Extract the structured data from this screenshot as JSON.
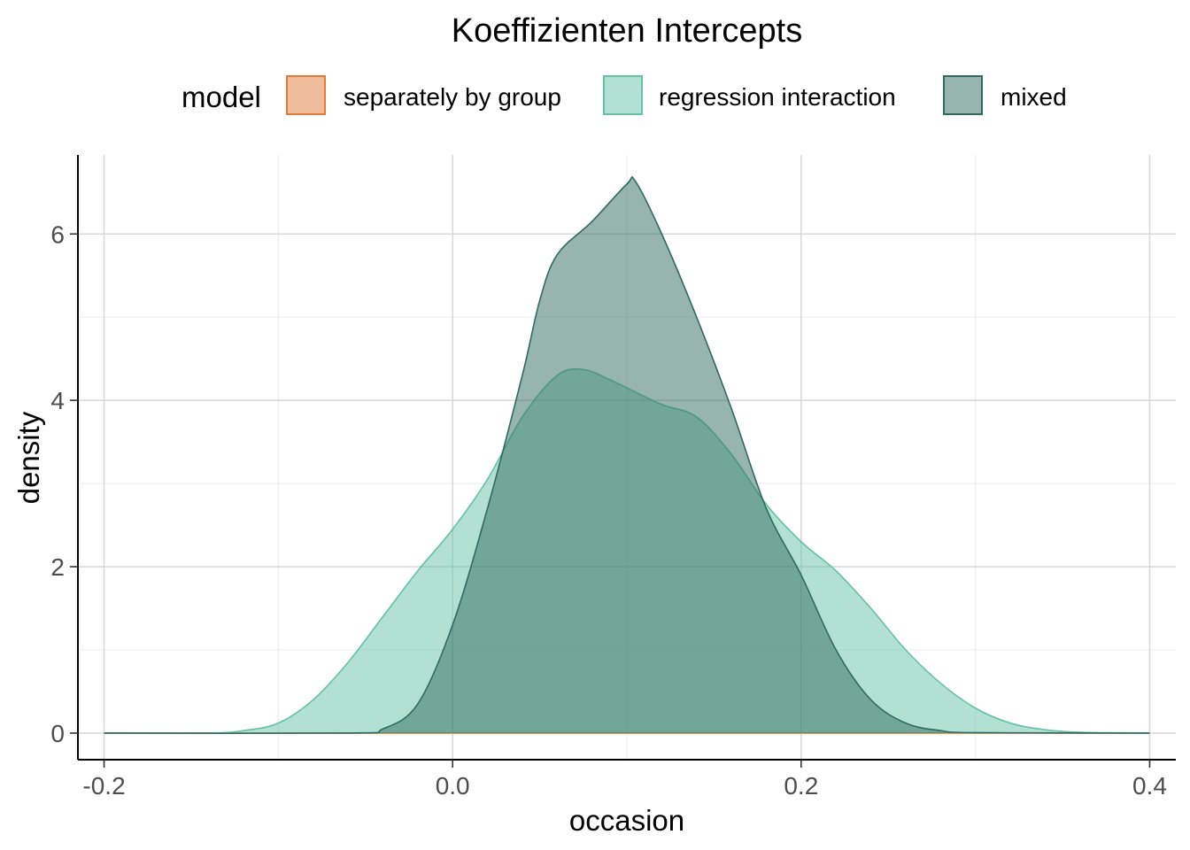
{
  "chart_data": {
    "type": "area",
    "title": "Koeffizienten Intercepts",
    "xlabel": "occasion",
    "ylabel": "density",
    "xlim": [
      -0.215,
      0.415
    ],
    "ylim": [
      -0.32,
      6.95
    ],
    "x_ticks": [
      -0.2,
      0.0,
      0.2,
      0.4
    ],
    "x_tick_labels": [
      "-0.2",
      "0.0",
      "0.2",
      "0.4"
    ],
    "y_ticks": [
      0,
      2,
      4,
      6
    ],
    "y_tick_labels": [
      "0",
      "2",
      "4",
      "6"
    ],
    "grid": true,
    "legend": {
      "title": "model",
      "position": "top",
      "entries": [
        {
          "label": "separately by group",
          "fill": "#e07b39",
          "stroke": "#e07b39"
        },
        {
          "label": "regression interaction",
          "fill": "#66c2a5",
          "stroke": "#66c2a5"
        },
        {
          "label": "mixed",
          "fill": "#2f6b5e",
          "stroke": "#2f6b5e"
        }
      ]
    },
    "series": [
      {
        "name": "separately by group",
        "fill": "#e07b39",
        "opacity": 0.5,
        "x": [
          -0.2,
          0.4
        ],
        "y": [
          0,
          0
        ]
      },
      {
        "name": "regression interaction",
        "fill": "#66c2a5",
        "opacity": 0.5,
        "x": [
          -0.2,
          -0.14,
          -0.12,
          -0.1,
          -0.08,
          -0.06,
          -0.04,
          -0.02,
          0.0,
          0.02,
          0.04,
          0.06,
          0.075,
          0.09,
          0.1,
          0.12,
          0.14,
          0.16,
          0.18,
          0.2,
          0.22,
          0.24,
          0.26,
          0.28,
          0.3,
          0.32,
          0.34,
          0.36,
          0.4
        ],
        "y": [
          0,
          0.0,
          0.03,
          0.12,
          0.4,
          0.85,
          1.4,
          1.95,
          2.45,
          3.05,
          3.8,
          4.3,
          4.37,
          4.25,
          4.15,
          3.95,
          3.8,
          3.35,
          2.75,
          2.3,
          1.95,
          1.5,
          1.0,
          0.6,
          0.3,
          0.12,
          0.04,
          0.01,
          0
        ]
      },
      {
        "name": "mixed",
        "fill": "#2f6b5e",
        "opacity": 0.5,
        "x": [
          -0.2,
          -0.06,
          -0.04,
          -0.02,
          0.0,
          0.02,
          0.04,
          0.05,
          0.06,
          0.08,
          0.1,
          0.105,
          0.12,
          0.14,
          0.16,
          0.18,
          0.2,
          0.22,
          0.24,
          0.26,
          0.28,
          0.3,
          0.4
        ],
        "y": [
          0,
          0.0,
          0.05,
          0.35,
          1.3,
          2.7,
          4.3,
          5.2,
          5.75,
          6.15,
          6.6,
          6.63,
          6.0,
          5.0,
          3.9,
          2.7,
          1.9,
          1.0,
          0.4,
          0.12,
          0.03,
          0.005,
          0
        ]
      }
    ]
  }
}
